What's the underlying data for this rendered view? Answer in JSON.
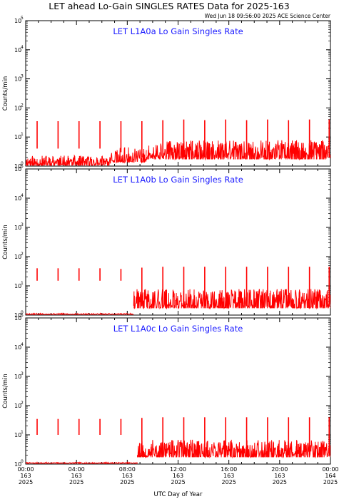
{
  "header": {
    "title": "LET ahead Lo-Gain SINGLES RATES Data for 2025-163",
    "timestamp": "Wed Jun 18 09:56:00 2025 ACE Science Center"
  },
  "colors": {
    "data": "#ff0000",
    "panel_title": "#1a1aff",
    "axes": "#000000"
  },
  "chart_data": [
    {
      "type": "line",
      "title": "LET L1A0a Lo Gain Singles Rate",
      "ylabel": "Counts/min",
      "yscale": "log",
      "ylim": [
        1,
        100000
      ],
      "xlim": [
        0,
        24
      ],
      "y_ticks": [
        {
          "base": "10",
          "exp": "0"
        },
        {
          "base": "10",
          "exp": "1"
        },
        {
          "base": "10",
          "exp": "2"
        },
        {
          "base": "10",
          "exp": "3"
        },
        {
          "base": "10",
          "exp": "4"
        },
        {
          "base": "10",
          "exp": "5"
        }
      ],
      "spikes": [
        {
          "x": 0.9,
          "min": 4,
          "max": 35
        },
        {
          "x": 2.55,
          "min": 4,
          "max": 35
        },
        {
          "x": 4.2,
          "min": 4,
          "max": 35
        },
        {
          "x": 5.85,
          "min": 4,
          "max": 35
        },
        {
          "x": 7.5,
          "min": 3,
          "max": 35
        },
        {
          "x": 9.15,
          "min": 2,
          "max": 35
        },
        {
          "x": 10.8,
          "min": 2,
          "max": 38
        },
        {
          "x": 12.45,
          "min": 2,
          "max": 40
        },
        {
          "x": 14.1,
          "min": 2,
          "max": 38
        },
        {
          "x": 15.75,
          "min": 2,
          "max": 40
        },
        {
          "x": 17.4,
          "min": 2,
          "max": 38
        },
        {
          "x": 19.05,
          "min": 2,
          "max": 40
        },
        {
          "x": 20.7,
          "min": 2,
          "max": 38
        },
        {
          "x": 22.35,
          "min": 2,
          "max": 40
        },
        {
          "x": 23.9,
          "min": 2,
          "max": 40
        }
      ],
      "noise": [
        {
          "start": 0,
          "end": 6.7,
          "base": 1.1,
          "amp": 1.2,
          "seed": 11
        },
        {
          "start": 6.7,
          "end": 9.5,
          "base": 1.4,
          "amp": 3,
          "seed": 23
        },
        {
          "start": 9.5,
          "end": 24,
          "base": 1.8,
          "amp": 6,
          "seed": 37
        }
      ]
    },
    {
      "type": "line",
      "title": "LET L1A0b Lo Gain Singles Rate",
      "ylabel": "Counts/min",
      "yscale": "log",
      "ylim": [
        1,
        100000
      ],
      "xlim": [
        0,
        24
      ],
      "y_ticks": [
        {
          "base": "10",
          "exp": "0"
        },
        {
          "base": "10",
          "exp": "1"
        },
        {
          "base": "10",
          "exp": "2"
        },
        {
          "base": "10",
          "exp": "3"
        },
        {
          "base": "10",
          "exp": "4"
        },
        {
          "base": "10",
          "exp": "5"
        }
      ],
      "spikes": [
        {
          "x": 0.9,
          "min": 15,
          "max": 40
        },
        {
          "x": 2.55,
          "min": 15,
          "max": 40
        },
        {
          "x": 4.2,
          "min": 15,
          "max": 40
        },
        {
          "x": 5.85,
          "min": 15,
          "max": 40
        },
        {
          "x": 7.5,
          "min": 15,
          "max": 38
        },
        {
          "x": 9.15,
          "min": 2,
          "max": 42
        },
        {
          "x": 10.8,
          "min": 2,
          "max": 45
        },
        {
          "x": 12.45,
          "min": 2,
          "max": 45
        },
        {
          "x": 14.1,
          "min": 2,
          "max": 45
        },
        {
          "x": 15.75,
          "min": 2,
          "max": 45
        },
        {
          "x": 17.4,
          "min": 2,
          "max": 45
        },
        {
          "x": 19.05,
          "min": 2,
          "max": 45
        },
        {
          "x": 20.7,
          "min": 2,
          "max": 45
        },
        {
          "x": 22.35,
          "min": 2,
          "max": 45
        },
        {
          "x": 23.9,
          "min": 2,
          "max": 45
        }
      ],
      "noise": [
        {
          "start": 0,
          "end": 8.5,
          "base": 1.05,
          "amp": 0.1,
          "seed": 5
        },
        {
          "start": 8.5,
          "end": 24,
          "base": 1.8,
          "amp": 6,
          "seed": 41
        }
      ]
    },
    {
      "type": "line",
      "title": "LET L1A0c Lo Gain Singles Rate",
      "ylabel": "Counts/min",
      "yscale": "log",
      "ylim": [
        1,
        100000
      ],
      "xlim": [
        0,
        24
      ],
      "xlabel": "UTC Day of Year",
      "y_ticks": [
        {
          "base": "10",
          "exp": "0"
        },
        {
          "base": "10",
          "exp": "1"
        },
        {
          "base": "10",
          "exp": "2"
        },
        {
          "base": "10",
          "exp": "3"
        },
        {
          "base": "10",
          "exp": "4"
        },
        {
          "base": "10",
          "exp": "5"
        }
      ],
      "x_ticks": [
        {
          "x": 0,
          "time": "00:00",
          "day": "163",
          "year": "2025"
        },
        {
          "x": 4,
          "time": "04:00",
          "day": "163",
          "year": "2025"
        },
        {
          "x": 8,
          "time": "08:00",
          "day": "163",
          "year": "2025"
        },
        {
          "x": 12,
          "time": "12:00",
          "day": "163",
          "year": "2025"
        },
        {
          "x": 16,
          "time": "16:00",
          "day": "163",
          "year": "2025"
        },
        {
          "x": 20,
          "time": "20:00",
          "day": "163",
          "year": "2025"
        },
        {
          "x": 24,
          "time": "00:00",
          "day": "164",
          "year": "2025"
        }
      ],
      "spikes": [
        {
          "x": 0.9,
          "min": 10,
          "max": 35
        },
        {
          "x": 2.55,
          "min": 10,
          "max": 35
        },
        {
          "x": 4.2,
          "min": 10,
          "max": 35
        },
        {
          "x": 5.85,
          "min": 10,
          "max": 35
        },
        {
          "x": 7.5,
          "min": 10,
          "max": 35
        },
        {
          "x": 9.15,
          "min": 2,
          "max": 38
        },
        {
          "x": 10.8,
          "min": 2,
          "max": 40
        },
        {
          "x": 12.45,
          "min": 2,
          "max": 40
        },
        {
          "x": 14.1,
          "min": 2,
          "max": 40
        },
        {
          "x": 15.75,
          "min": 2,
          "max": 40
        },
        {
          "x": 17.4,
          "min": 2,
          "max": 40
        },
        {
          "x": 19.05,
          "min": 2,
          "max": 40
        },
        {
          "x": 20.7,
          "min": 2,
          "max": 40
        },
        {
          "x": 22.35,
          "min": 2,
          "max": 40
        },
        {
          "x": 23.9,
          "min": 2,
          "max": 40
        }
      ],
      "noise": [
        {
          "start": 0,
          "end": 8.8,
          "base": 1.05,
          "amp": 0.1,
          "seed": 7
        },
        {
          "start": 8.8,
          "end": 24,
          "base": 1.8,
          "amp": 5,
          "seed": 53
        }
      ]
    }
  ]
}
